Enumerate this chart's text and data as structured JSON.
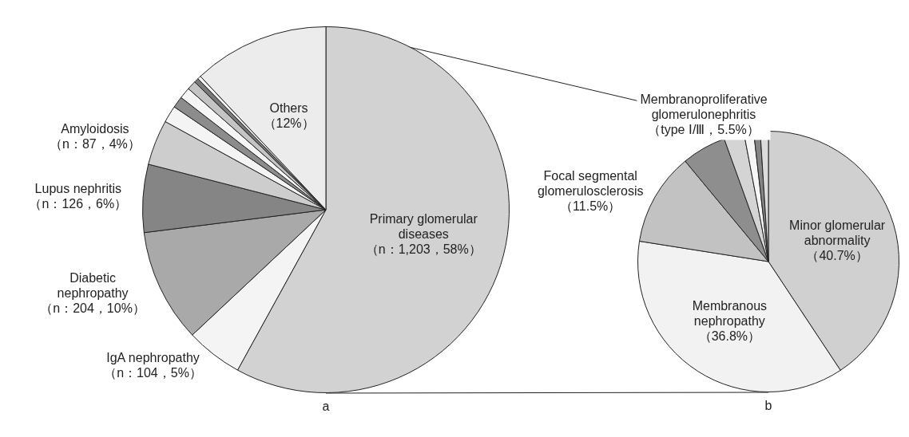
{
  "chart_data": [
    {
      "type": "pie",
      "categories": [
        "Primary glomerular diseases",
        "IgA nephropathy",
        "Diabetic nephropathy",
        "Lupus nephritis",
        "Amyloidosis",
        null,
        null,
        null,
        null,
        null,
        null,
        "Others"
      ],
      "values": [
        58,
        5,
        10,
        6,
        4,
        1.5,
        1,
        1,
        0.8,
        0.4,
        0.3,
        12
      ],
      "value_labels": [
        "（n：1,203，58%）",
        "（n：104，5%）",
        "（n：204，10%）",
        "（n：126，6%）",
        "（n：87，4%）",
        null,
        null,
        null,
        null,
        null,
        null,
        "（12%）"
      ],
      "colors": [
        "#d2d2d2",
        "#f4f4f4",
        "#a9a9a9",
        "#858585",
        "#cdcdcd",
        "#f4f4f4",
        "#8c8c8c",
        "#f6f6f6",
        "#c4c4c4",
        "#7a7a7a",
        "#f4f4f4",
        "#ececec"
      ],
      "annotations": [
        "a"
      ]
    },
    {
      "type": "pie",
      "categories": [
        "Minor glomerular abnormality",
        "Membranous nephropathy",
        "Focal segmental glomerulosclerosis",
        "Membranoproliferative glomerulonephritis",
        null,
        null,
        null,
        null
      ],
      "values": [
        40.7,
        36.8,
        11.5,
        5.5,
        2.5,
        1.2,
        0.8,
        1.0
      ],
      "value_labels": [
        "（40.7%）",
        "（36.8%）",
        "（11.5%）",
        "（type Ⅰ/Ⅲ，5.5%）",
        null,
        null,
        null,
        null
      ],
      "colors": [
        "#d0d0d0",
        "#f2f2f2",
        "#c2c2c2",
        "#8e8e8e",
        "#d4d4d4",
        "#f6f6f6",
        "#858585",
        "#dcdcdc"
      ],
      "annotations": [
        "b"
      ]
    }
  ]
}
